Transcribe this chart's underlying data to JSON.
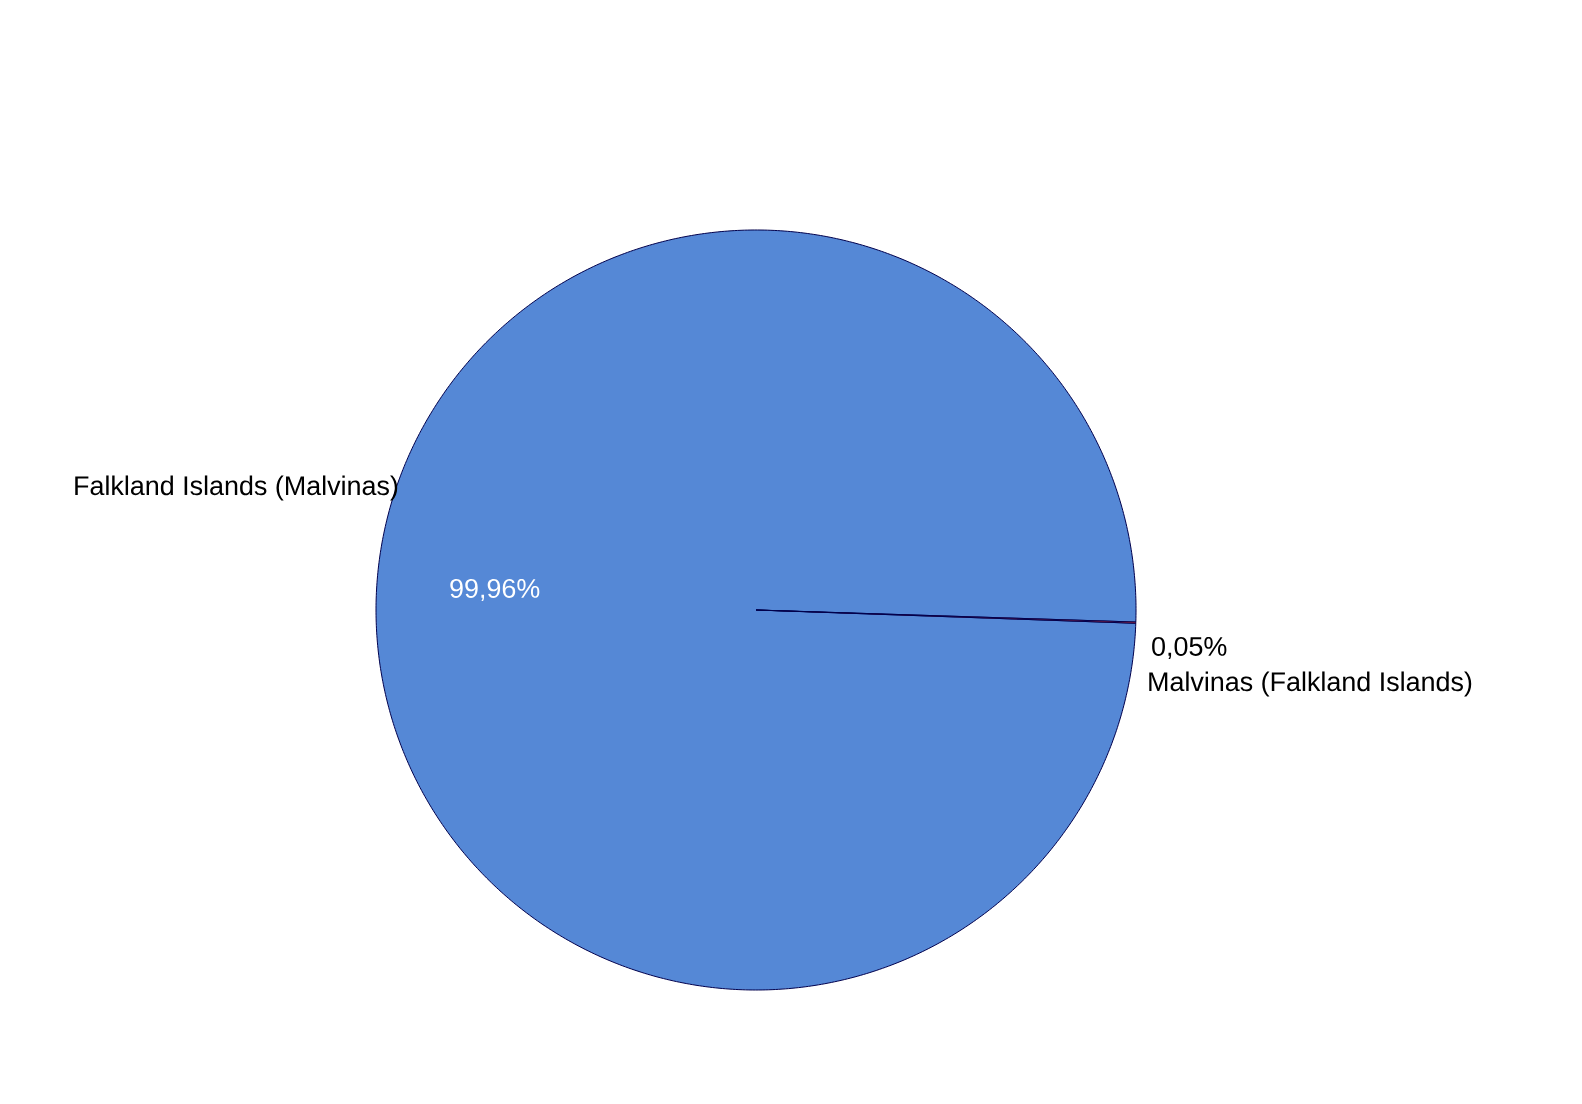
{
  "chart_data": {
    "type": "pie",
    "categories": [
      "Falkland Islands (Malvinas)",
      "Malvinas (Falkland Islands)"
    ],
    "values": [
      99.96,
      0.05
    ],
    "value_labels": [
      "99,96%",
      "0,05%"
    ],
    "colors": [
      "#5588d6",
      "#ff4040"
    ]
  }
}
